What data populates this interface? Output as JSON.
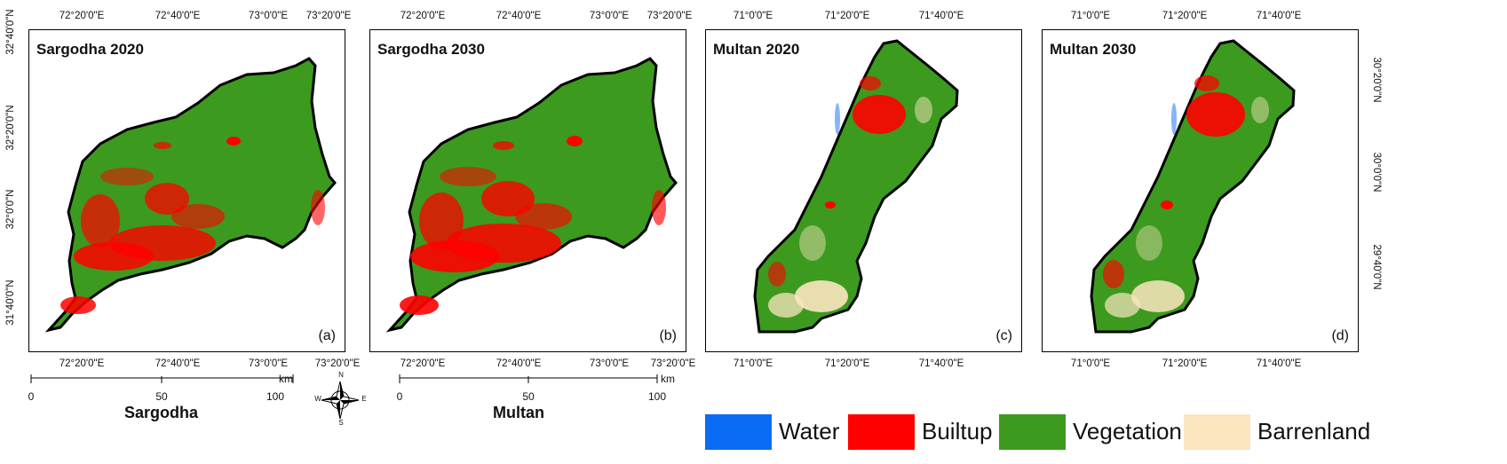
{
  "panels": [
    {
      "title": "Sargodha 2020",
      "label": "(a)",
      "top_ticks": [
        "72°20'0\"E",
        "72°40'0\"E",
        "73°0'0\"E",
        "73°20'0\"E"
      ],
      "bottom_ticks": [
        "72°20'0\"E",
        "72°40'0\"E",
        "73°0'0\"E",
        "73°20'0\"E"
      ]
    },
    {
      "title": "Sargodha 2030",
      "label": "(b)",
      "top_ticks": [
        "72°20'0\"E",
        "72°40'0\"E",
        "73°0'0\"E",
        "73°20'0\"E"
      ],
      "bottom_ticks": [
        "72°20'0\"E",
        "72°40'0\"E",
        "73°0'0\"E",
        "73°20'0\"E"
      ]
    },
    {
      "title": "Multan 2020",
      "label": "(c)",
      "top_ticks": [
        "71°0'0\"E",
        "71°20'0\"E",
        "71°40'0\"E"
      ],
      "bottom_ticks": [
        "71°0'0\"E",
        "71°20'0\"E",
        "71°40'0\"E"
      ]
    },
    {
      "title": "Multan 2030",
      "label": "(d)",
      "top_ticks": [
        "71°0'0\"E",
        "71°20'0\"E",
        "71°40'0\"E"
      ],
      "bottom_ticks": [
        "71°0'0\"E",
        "71°20'0\"E",
        "71°40'0\"E"
      ]
    }
  ],
  "left_lat_ticks": [
    "32°40'0\"N",
    "32°20'0\"N",
    "32°0'0\"N",
    "31°40'0\"N"
  ],
  "right_lat_ticks": [
    "30°20'0\"N",
    "30°0'0\"N",
    "29°40'0\"N"
  ],
  "scalebars": [
    {
      "name": "Sargodha",
      "ticks": [
        "0",
        "50",
        "100"
      ],
      "unit": "km"
    },
    {
      "name": "Multan",
      "ticks": [
        "0",
        "50",
        "100"
      ],
      "unit": "km"
    }
  ],
  "compass": {
    "icon": "north-arrow-compass-icon",
    "n": "N",
    "s": "S",
    "e": "E",
    "w": "W"
  },
  "legend": [
    {
      "label": "Water",
      "color": "#0a6cf5"
    },
    {
      "label": "Builtup",
      "color": "#ff0000"
    },
    {
      "label": "Vegetation",
      "color": "#3c9a1e"
    },
    {
      "label": "Barrenland",
      "color": "#fbe6c0"
    }
  ]
}
